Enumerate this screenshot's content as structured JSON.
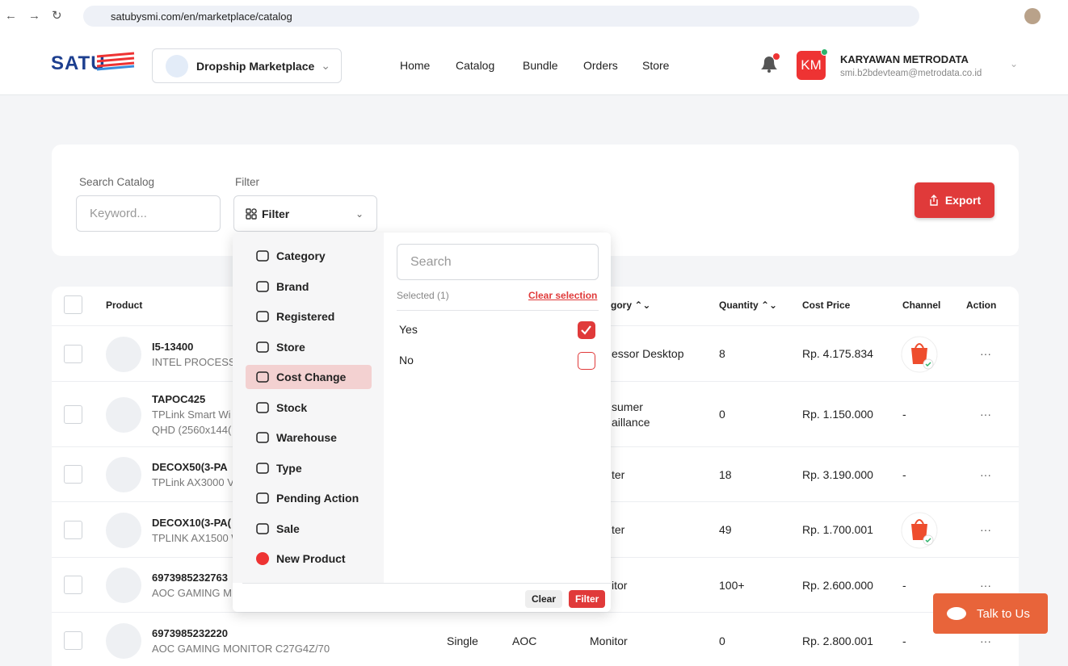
{
  "browser": {
    "url": "satubysmi.com/en/marketplace/catalog"
  },
  "header": {
    "logo": "SATU",
    "marketplace": "Dropship Marketplace",
    "nav": [
      "Home",
      "Catalog",
      "Bundle",
      "Orders",
      "Store"
    ],
    "user": {
      "initials": "KM",
      "name": "KARYAWAN METRODATA",
      "email": "smi.b2bdevteam@metrodata.co.id"
    }
  },
  "search": {
    "search_label": "Search Catalog",
    "search_placeholder": "Keyword...",
    "filter_label": "Filter",
    "filter_button": "Filter",
    "export": "Export"
  },
  "table": {
    "columns": [
      "Product",
      "gory",
      "Quantity",
      "Cost Price",
      "Channel",
      "Action"
    ],
    "rows": [
      {
        "name": "I5-13400",
        "description": [
          "INTEL PROCESSO"
        ],
        "category": [
          "essor Desktop"
        ],
        "quantity": 8,
        "cost_price": "Rp. 4.175.834",
        "shopee": true,
        "action": "···"
      },
      {
        "name": "TAPOC425",
        "description": [
          "TPLink Smart Wi",
          "QHD (2560x144("
        ],
        "category": [
          "sumer",
          "aillance"
        ],
        "quantity": 0,
        "cost_price": "Rp. 1.150.000",
        "channel": "-",
        "action": "···"
      },
      {
        "name": "DECOX50(3-PA",
        "description": [
          "TPLink AX3000 V"
        ],
        "category": [
          "ter"
        ],
        "quantity": 18,
        "cost_price": "Rp. 3.190.000",
        "channel": "-",
        "action": "···"
      },
      {
        "name": "DECOX10(3-PA(",
        "description": [
          "TPLINK AX1500 W"
        ],
        "category": [
          "ter"
        ],
        "quantity": 49,
        "cost_price": "Rp. 1.700.001",
        "shopee": true,
        "action": "···"
      },
      {
        "name": "6973985232763",
        "description": [
          "AOC GAMING M"
        ],
        "category": [
          "itor"
        ],
        "quantity": "100+",
        "cost_price": "Rp. 2.600.000",
        "channel": "-",
        "action": "···"
      },
      {
        "name": "6973985232220",
        "description": [
          "AOC GAMING MONITOR C27G4Z/70"
        ],
        "type": "Single",
        "brand": "AOC",
        "category": [
          "Monitor"
        ],
        "quantity": 0,
        "cost_price": "Rp. 2.800.001",
        "channel": "-",
        "action": "···"
      }
    ]
  },
  "filter_menu": {
    "items": [
      {
        "label": "Category",
        "selected": false
      },
      {
        "label": "Brand",
        "selected": false
      },
      {
        "label": "Registered",
        "selected": false
      },
      {
        "label": "Store",
        "selected": false
      },
      {
        "label": "Cost Change",
        "selected": true
      },
      {
        "label": "Stock",
        "selected": false
      },
      {
        "label": "Warehouse",
        "selected": false
      },
      {
        "label": "Type",
        "selected": false
      },
      {
        "label": "Pending Action",
        "selected": false
      },
      {
        "label": "Sale",
        "selected": false
      },
      {
        "label": "New Product",
        "selected": false
      }
    ],
    "search_placeholder": "Search",
    "selected_count": "Selected (1)",
    "clear_selection": "Clear selection",
    "options": [
      {
        "label": "Yes",
        "checked": true
      },
      {
        "label": "No",
        "checked": false
      }
    ],
    "clear": "Clear",
    "apply": "Filter"
  },
  "chat": {
    "label": "Talk to Us"
  }
}
